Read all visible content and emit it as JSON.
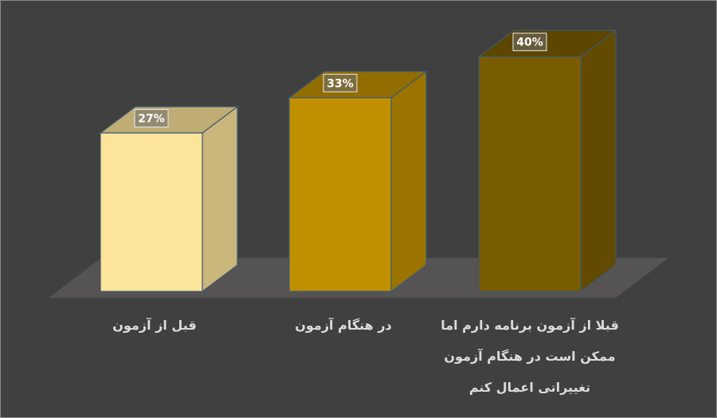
{
  "chart_data": {
    "type": "bar3d",
    "categories": [
      "قبل از آزمون",
      "در هنگام آزمون",
      "قبلا از آزمون برنامه دارم اما ممکن است در هنگام آزمون تغییراتی اعمال کنم"
    ],
    "values": [
      27,
      33,
      40
    ],
    "value_labels": [
      "27%",
      "33%",
      "40%"
    ],
    "colors": [
      "#FCE49A",
      "#C09000",
      "#7A5C00"
    ]
  }
}
